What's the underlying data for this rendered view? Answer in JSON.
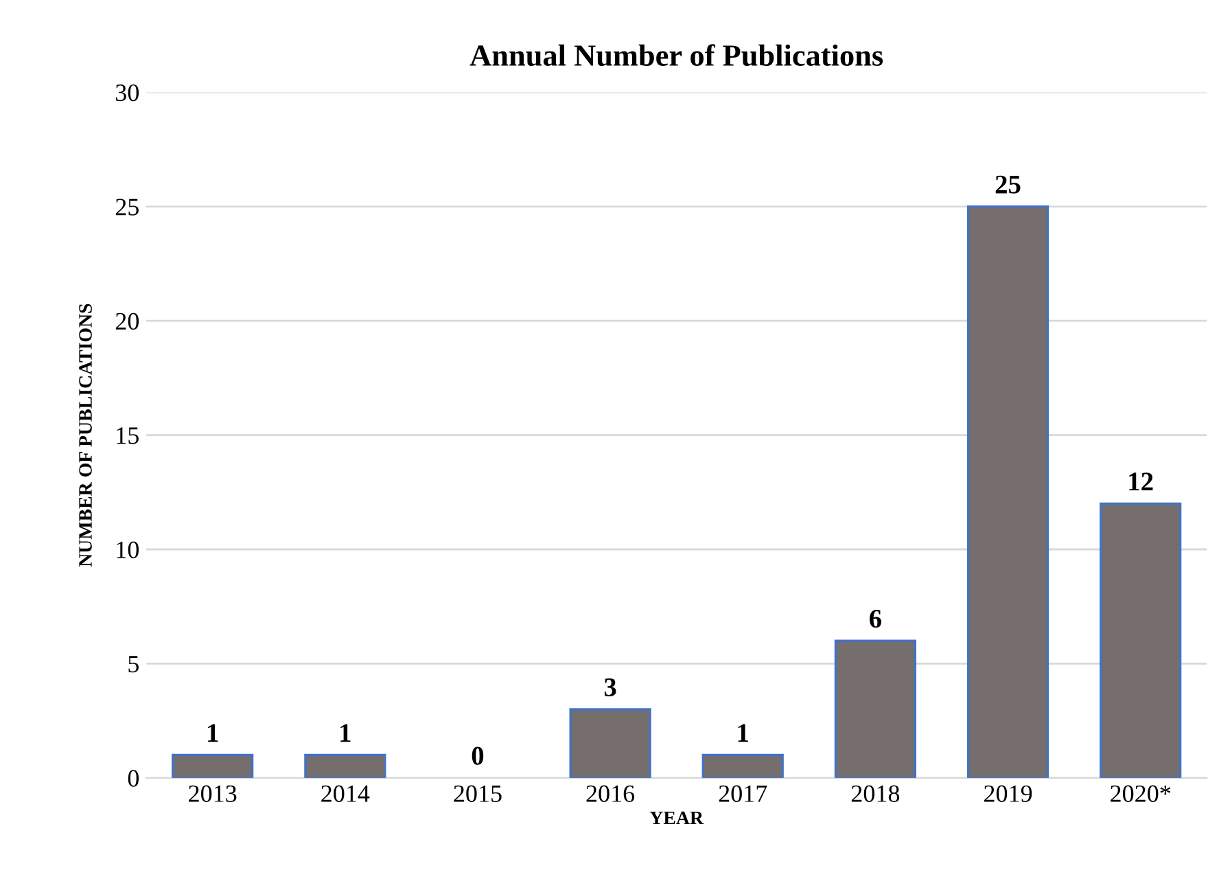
{
  "chart_data": {
    "type": "bar",
    "title": "Annual Number of Publications",
    "xlabel": "YEAR",
    "ylabel": "NUMBER OF PUBLICATIONS",
    "categories": [
      "2013",
      "2014",
      "2015",
      "2016",
      "2017",
      "2018",
      "2019",
      "2020*"
    ],
    "values": [
      1,
      1,
      0,
      3,
      1,
      6,
      25,
      12
    ],
    "color": "#756e6c",
    "ylim": [
      0,
      30
    ],
    "yticks": [
      0,
      5,
      10,
      15,
      20,
      25,
      30
    ],
    "grid": "y",
    "data_labels": true
  }
}
